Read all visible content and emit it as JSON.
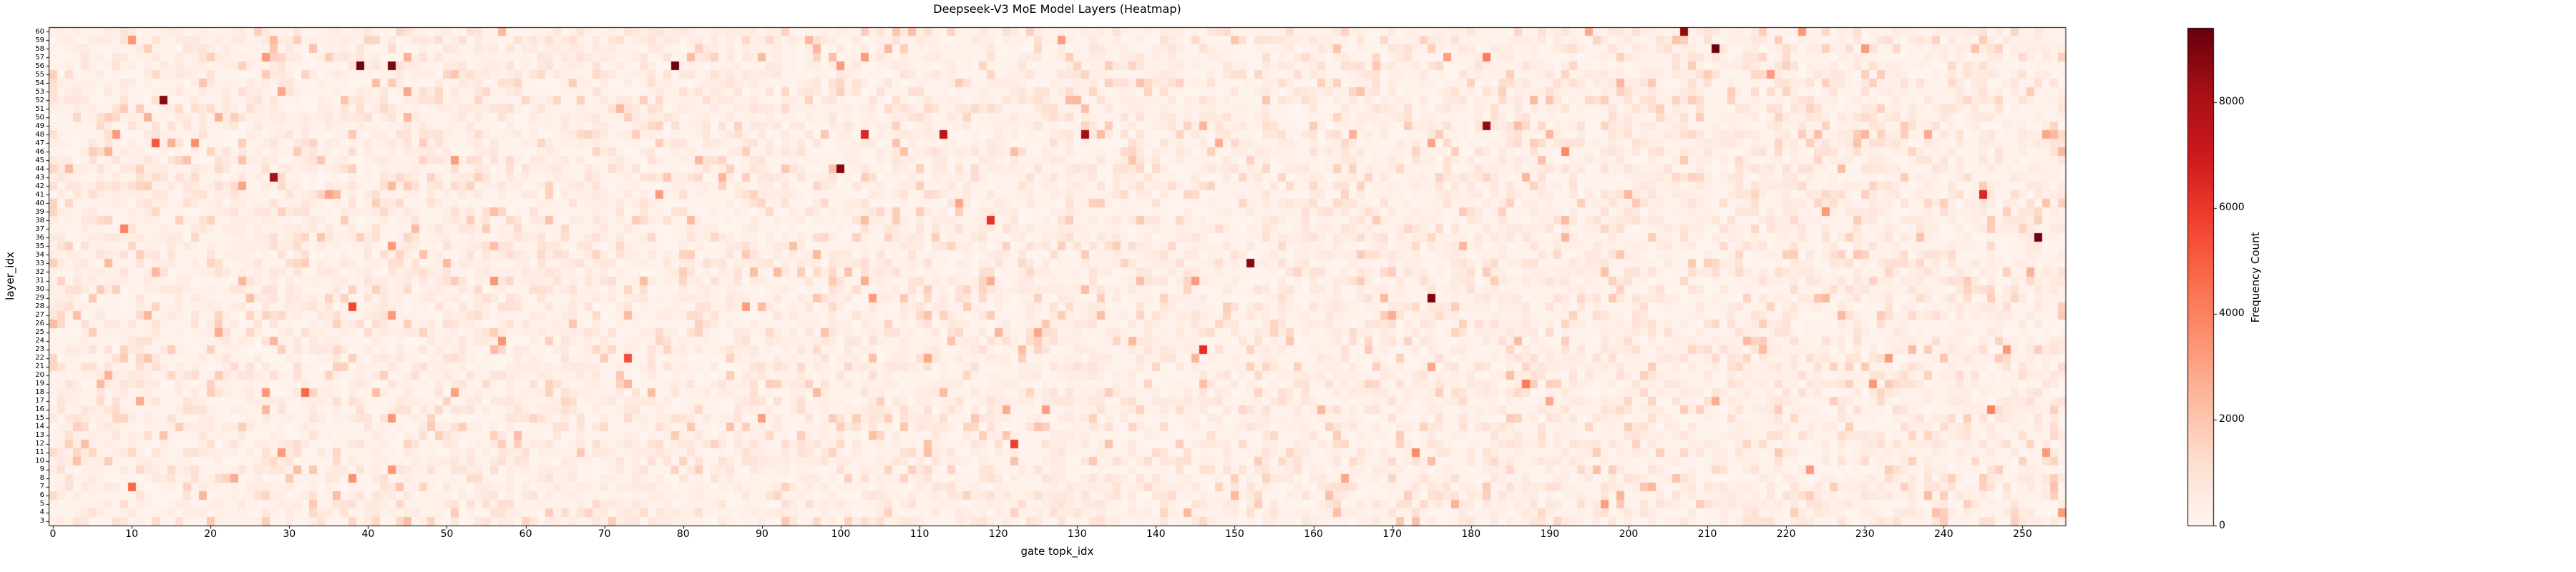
{
  "title": "Deepseek-V3 MoE Model Layers (Heatmap)",
  "chart_data": {
    "type": "heatmap",
    "title": "Deepseek-V3 MoE Model Layers (Heatmap)",
    "xlabel": "gate topk_idx",
    "ylabel": "layer_idx",
    "colorbar_label": "Frequency Count",
    "x_range": [
      0,
      255
    ],
    "y_range": [
      3,
      60
    ],
    "n_cols": 256,
    "n_rows": 58,
    "grid": false,
    "colormap": "Reds",
    "vmin": 0,
    "vmax": 9400,
    "x_ticks": [
      0,
      10,
      20,
      30,
      40,
      50,
      60,
      70,
      80,
      90,
      100,
      110,
      120,
      130,
      140,
      150,
      160,
      170,
      180,
      190,
      200,
      210,
      220,
      230,
      240,
      250
    ],
    "y_ticks": [
      60,
      59,
      58,
      57,
      56,
      55,
      54,
      53,
      52,
      51,
      50,
      49,
      48,
      47,
      46,
      45,
      44,
      43,
      42,
      41,
      40,
      39,
      38,
      37,
      36,
      35,
      34,
      33,
      32,
      31,
      30,
      29,
      28,
      27,
      26,
      25,
      24,
      23,
      22,
      21,
      20,
      19,
      18,
      17,
      16,
      15,
      14,
      13,
      12,
      11,
      10,
      9,
      8,
      7,
      6,
      5,
      4,
      3
    ],
    "colorbar_ticks": [
      0,
      2000,
      4000,
      6000,
      8000
    ],
    "colormap_stops": [
      [
        0.0,
        "#fff5f0"
      ],
      [
        0.125,
        "#fee0d2"
      ],
      [
        0.25,
        "#fcbba1"
      ],
      [
        0.375,
        "#fc9272"
      ],
      [
        0.5,
        "#fb6a4a"
      ],
      [
        0.625,
        "#ef3b2c"
      ],
      [
        0.75,
        "#cb181d"
      ],
      [
        0.875,
        "#a50f15"
      ],
      [
        1.0,
        "#67000d"
      ]
    ],
    "background_noise": {
      "description": "most cells are low-frequency values rendered in pale pink",
      "typical_range": [
        0,
        1800
      ],
      "seed": 20240607
    },
    "hotspots": [
      [
        10,
        59,
        3400
      ],
      [
        39,
        56,
        9200
      ],
      [
        43,
        56,
        9000
      ],
      [
        79,
        56,
        9300
      ],
      [
        100,
        56,
        3300
      ],
      [
        14,
        52,
        8800
      ],
      [
        12,
        50,
        2600
      ],
      [
        21,
        50,
        2600
      ],
      [
        182,
        57,
        4200
      ],
      [
        207,
        60,
        8600
      ],
      [
        211,
        58,
        9300
      ],
      [
        222,
        60,
        3400
      ],
      [
        13,
        47,
        5200
      ],
      [
        18,
        47,
        3600
      ],
      [
        107,
        47,
        2100
      ],
      [
        103,
        48,
        6600
      ],
      [
        113,
        48,
        7500
      ],
      [
        131,
        48,
        8300
      ],
      [
        182,
        49,
        8500
      ],
      [
        100,
        44,
        8800
      ],
      [
        28,
        43,
        8200
      ],
      [
        24,
        42,
        3000
      ],
      [
        43,
        42,
        2400
      ],
      [
        35,
        41,
        3000
      ],
      [
        245,
        41,
        6600
      ],
      [
        192,
        46,
        3800
      ],
      [
        255,
        46,
        2400
      ],
      [
        9,
        37,
        4000
      ],
      [
        119,
        38,
        6200
      ],
      [
        252,
        36,
        9200
      ],
      [
        237,
        36,
        2100
      ],
      [
        251,
        32,
        2600
      ],
      [
        13,
        32,
        2400
      ],
      [
        56,
        31,
        3400
      ],
      [
        138,
        31,
        2300
      ],
      [
        97,
        34,
        2400
      ],
      [
        152,
        33,
        8800
      ],
      [
        38,
        28,
        5600
      ],
      [
        175,
        29,
        9000
      ],
      [
        97,
        29,
        2000
      ],
      [
        57,
        24,
        3500
      ],
      [
        146,
        23,
        6300
      ],
      [
        73,
        22,
        5400
      ],
      [
        104,
        22,
        2200
      ],
      [
        72,
        20,
        2000
      ],
      [
        32,
        18,
        4800
      ],
      [
        187,
        19,
        4200
      ],
      [
        146,
        19,
        2200
      ],
      [
        246,
        16,
        4000
      ],
      [
        43,
        15,
        3400
      ],
      [
        125,
        14,
        2100
      ],
      [
        122,
        12,
        5800
      ],
      [
        134,
        12,
        2100
      ],
      [
        173,
        11,
        3800
      ],
      [
        31,
        9,
        2200
      ],
      [
        223,
        9,
        3300
      ],
      [
        38,
        8,
        3600
      ],
      [
        10,
        7,
        4800
      ],
      [
        44,
        7,
        2000
      ],
      [
        197,
        5,
        3200
      ]
    ]
  }
}
